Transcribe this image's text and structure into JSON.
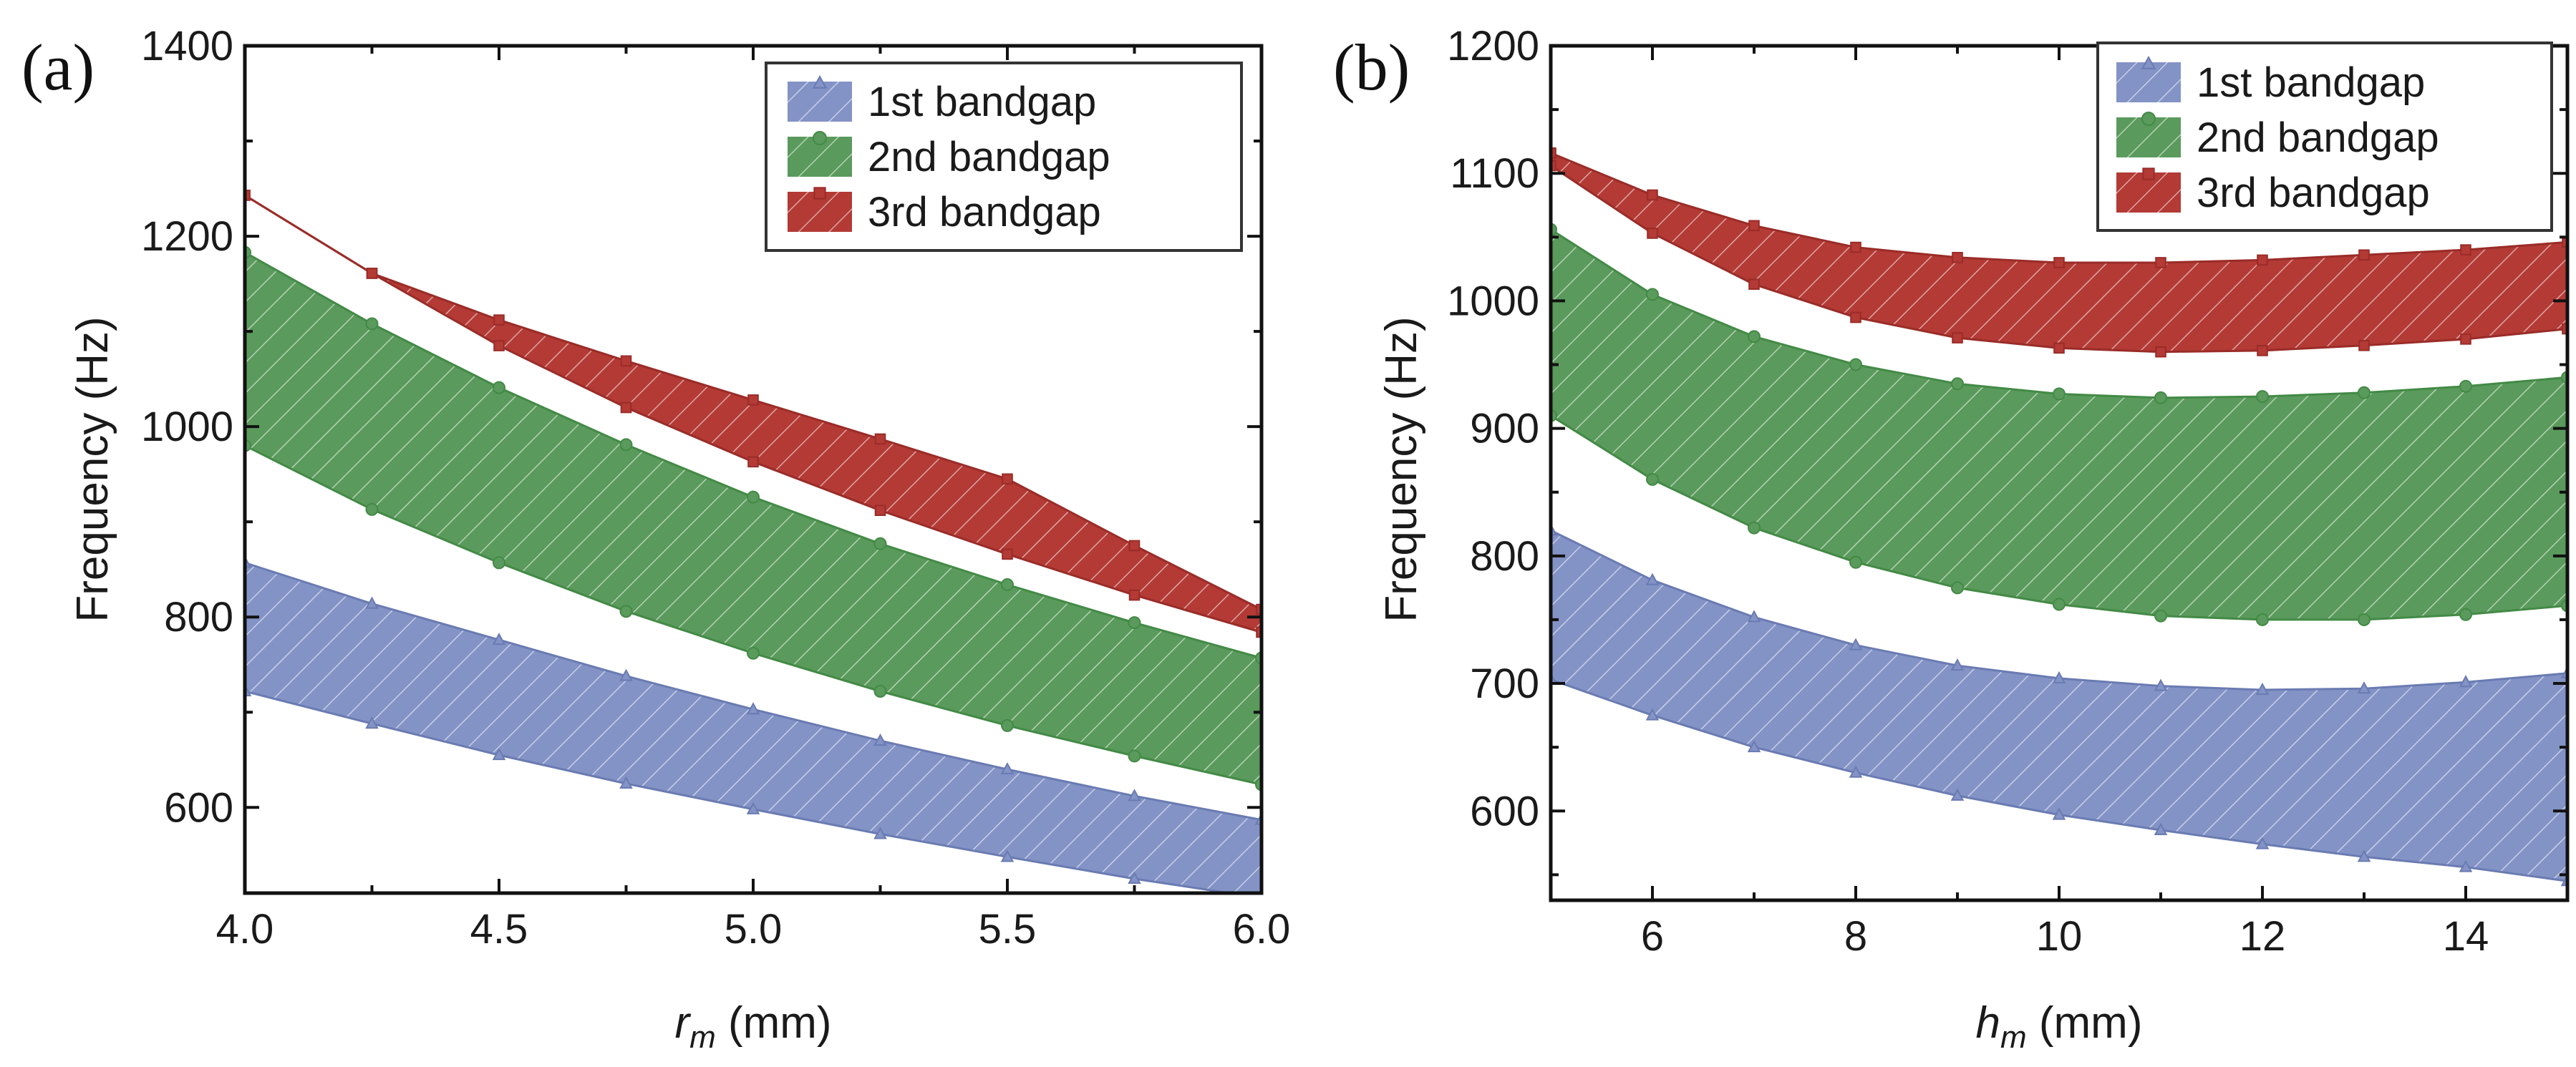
{
  "chart_data": [
    {
      "type": "area",
      "panel_label": "(a)",
      "xlabel_var": "r",
      "xlabel_sub": "m",
      "xlabel_unit": " (mm)",
      "ylabel": "Frequency (Hz)",
      "xlim": [
        4.0,
        6.0
      ],
      "ylim": [
        510,
        1400
      ],
      "xticks": [
        4.0,
        4.5,
        5.0,
        5.5,
        6.0
      ],
      "xtick_labels": [
        "4.0",
        "4.5",
        "5.0",
        "5.5",
        "6.0"
      ],
      "yticks": [
        600,
        800,
        1000,
        1200,
        1400
      ],
      "ytick_labels": [
        "600",
        "800",
        "1000",
        "1200",
        "1400"
      ],
      "legend_position": "top-right",
      "series": [
        {
          "name": "1st bandgap",
          "color": "#8393c6",
          "line_color": "#6a7bb2",
          "marker": "triangle",
          "x": [
            4.0,
            4.25,
            4.5,
            4.75,
            5.0,
            5.25,
            5.5,
            5.75,
            6.0
          ],
          "lower": [
            722,
            688,
            655,
            625,
            598,
            572,
            548,
            525,
            505
          ],
          "upper": [
            857,
            814,
            776,
            738,
            703,
            670,
            640,
            612,
            587
          ]
        },
        {
          "name": "2nd bandgap",
          "color": "#5a9a5c",
          "line_color": "#438a46",
          "marker": "circle",
          "x": [
            4.0,
            4.25,
            4.5,
            4.75,
            5.0,
            5.25,
            5.5,
            5.75,
            6.0
          ],
          "lower": [
            980,
            913,
            857,
            806,
            762,
            722,
            686,
            654,
            624
          ],
          "upper": [
            1183,
            1108,
            1041,
            981,
            926,
            877,
            834,
            794,
            757
          ]
        },
        {
          "name": "3rd bandgap",
          "color": "#b33a35",
          "line_color": "#9a2c28",
          "marker": "square",
          "x": [
            4.0,
            4.25,
            4.5,
            4.75,
            5.0,
            5.25,
            5.5,
            5.75,
            6.0
          ],
          "lower": [
            1243,
            1161,
            1085,
            1020,
            963,
            912,
            866,
            823,
            784
          ],
          "upper": [
            1243,
            1161,
            1112,
            1069,
            1028,
            987,
            945,
            875,
            808
          ]
        }
      ]
    },
    {
      "type": "area",
      "panel_label": "(b)",
      "xlabel_var": "h",
      "xlabel_sub": "m",
      "xlabel_unit": " (mm)",
      "ylabel": "Frequency (Hz)",
      "xlim": [
        5,
        15
      ],
      "ylim": [
        530,
        1200
      ],
      "xticks": [
        6,
        8,
        10,
        12,
        14
      ],
      "xtick_labels": [
        "6",
        "8",
        "10",
        "12",
        "14"
      ],
      "yticks": [
        600,
        700,
        800,
        900,
        1000,
        1100,
        1200
      ],
      "ytick_labels": [
        "600",
        "700",
        "800",
        "900",
        "1000",
        "1100",
        "1200"
      ],
      "legend_position": "top-right",
      "series": [
        {
          "name": "1st bandgap",
          "color": "#8393c6",
          "line_color": "#6a7bb2",
          "marker": "triangle",
          "x": [
            5,
            6,
            7,
            8,
            9,
            10,
            11,
            12,
            13,
            14,
            15
          ],
          "lower": [
            703,
            675,
            650,
            630,
            612,
            597,
            585,
            574,
            564,
            556,
            545
          ],
          "upper": [
            820,
            781,
            752,
            730,
            714,
            704,
            698,
            695,
            696,
            701,
            708
          ]
        },
        {
          "name": "2nd bandgap",
          "color": "#5a9a5c",
          "line_color": "#438a46",
          "marker": "circle",
          "x": [
            5,
            6,
            7,
            8,
            9,
            10,
            11,
            12,
            13,
            14,
            15
          ],
          "lower": [
            910,
            860,
            822,
            795,
            775,
            762,
            753,
            750,
            750,
            754,
            761
          ],
          "upper": [
            1056,
            1005,
            972,
            950,
            935,
            927,
            924,
            925,
            928,
            933,
            940
          ]
        },
        {
          "name": "3rd bandgap",
          "color": "#b33a35",
          "line_color": "#9a2c28",
          "marker": "square",
          "x": [
            5,
            6,
            7,
            8,
            9,
            10,
            11,
            12,
            13,
            14,
            15
          ],
          "lower": [
            1106,
            1053,
            1013,
            987,
            971,
            963,
            960,
            961,
            965,
            970,
            978
          ],
          "upper": [
            1116,
            1083,
            1059,
            1042,
            1034,
            1030,
            1030,
            1032,
            1036,
            1040,
            1046
          ]
        }
      ]
    }
  ]
}
